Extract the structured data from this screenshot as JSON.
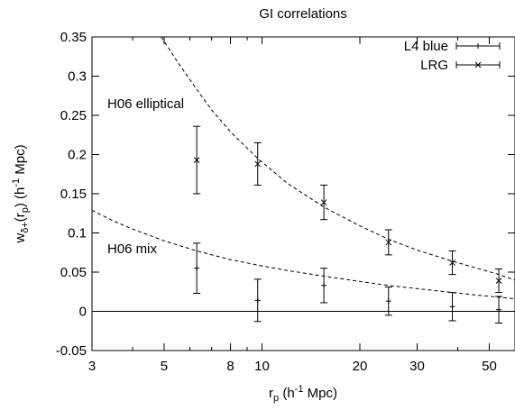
{
  "chart_data": {
    "type": "scatter",
    "title": "GI correlations",
    "xlabel": {
      "base": "r",
      "sub": "p",
      "pre": " (h",
      "sup": "-1",
      "post": " Mpc)"
    },
    "ylabel": {
      "base": "w",
      "sub": "δ+",
      "mid": "(r",
      "sub2": "p",
      "pre": ") (h",
      "sup": "-1",
      "post": " Mpc)"
    },
    "xscale": "log",
    "xlim": [
      3,
      60
    ],
    "ylim": [
      -0.05,
      0.35
    ],
    "xticks": [
      {
        "value": 3,
        "label": "3"
      },
      {
        "value": 5,
        "label": "5"
      },
      {
        "value": 8,
        "label": "8"
      },
      {
        "value": 10,
        "label": "10"
      },
      {
        "value": 20,
        "label": "20"
      },
      {
        "value": 30,
        "label": "30"
      },
      {
        "value": 50,
        "label": "50"
      }
    ],
    "xminor": [
      4,
      6,
      7,
      9,
      40
    ],
    "yticks": [
      {
        "value": -0.05,
        "label": "-0.05"
      },
      {
        "value": 0,
        "label": "0"
      },
      {
        "value": 0.05,
        "label": "0.05"
      },
      {
        "value": 0.1,
        "label": "0.1"
      },
      {
        "value": 0.15,
        "label": "0.15"
      },
      {
        "value": 0.2,
        "label": "0.2"
      },
      {
        "value": 0.25,
        "label": "0.25"
      },
      {
        "value": 0.3,
        "label": "0.3"
      },
      {
        "value": 0.35,
        "label": "0.35"
      }
    ],
    "grid": false,
    "legend": "top-right",
    "series": [
      {
        "name": "L4 blue",
        "marker": "plus",
        "points": [
          {
            "x": 6.3,
            "y": 0.055,
            "err": 0.032
          },
          {
            "x": 9.7,
            "y": 0.014,
            "err": 0.027
          },
          {
            "x": 15.5,
            "y": 0.033,
            "err": 0.022
          },
          {
            "x": 24.5,
            "y": 0.013,
            "err": 0.018
          },
          {
            "x": 38.5,
            "y": 0.006,
            "err": 0.018
          },
          {
            "x": 53.5,
            "y": 0.002,
            "err": 0.017
          }
        ]
      },
      {
        "name": "LRG",
        "marker": "cross",
        "points": [
          {
            "x": 6.3,
            "y": 0.193,
            "err": 0.043
          },
          {
            "x": 9.7,
            "y": 0.188,
            "err": 0.027
          },
          {
            "x": 15.5,
            "y": 0.139,
            "err": 0.022
          },
          {
            "x": 24.5,
            "y": 0.088,
            "err": 0.016
          },
          {
            "x": 38.5,
            "y": 0.062,
            "err": 0.015
          },
          {
            "x": 53.5,
            "y": 0.039,
            "err": 0.015
          }
        ]
      }
    ],
    "reference_line": {
      "y": 0
    },
    "model_curves": [
      {
        "label": "H06 elliptical",
        "style": "dashed",
        "points": [
          [
            4.9,
            0.35
          ],
          [
            5.5,
            0.318
          ],
          [
            6.3,
            0.283
          ],
          [
            7,
            0.257
          ],
          [
            8,
            0.229
          ],
          [
            9.7,
            0.195
          ],
          [
            12,
            0.163
          ],
          [
            15.5,
            0.133
          ],
          [
            20,
            0.109
          ],
          [
            24.5,
            0.092
          ],
          [
            30,
            0.078
          ],
          [
            38.5,
            0.064
          ],
          [
            45,
            0.056
          ],
          [
            53.5,
            0.047
          ],
          [
            60,
            0.04
          ]
        ]
      },
      {
        "label": "H06 mix",
        "style": "dashed",
        "points": [
          [
            3,
            0.129
          ],
          [
            3.5,
            0.115
          ],
          [
            4,
            0.105
          ],
          [
            5,
            0.09
          ],
          [
            6.3,
            0.077
          ],
          [
            8,
            0.066
          ],
          [
            9.7,
            0.059
          ],
          [
            12,
            0.052
          ],
          [
            15.5,
            0.045
          ],
          [
            20,
            0.038
          ],
          [
            24.5,
            0.033
          ],
          [
            30,
            0.029
          ],
          [
            38.5,
            0.024
          ],
          [
            45,
            0.021
          ],
          [
            53.5,
            0.018
          ],
          [
            60,
            0.016
          ]
        ]
      }
    ]
  }
}
